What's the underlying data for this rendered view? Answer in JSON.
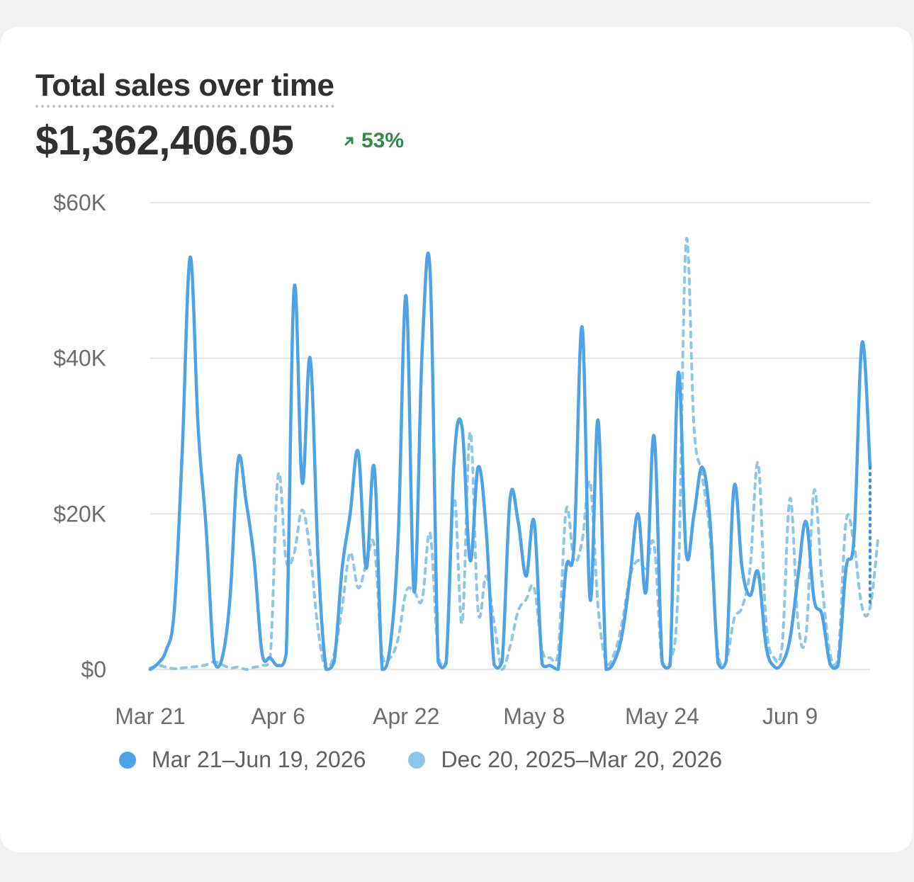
{
  "card": {
    "title": "Total sales over time",
    "total": "$1,362,406.05",
    "change_pct": "53%",
    "change_direction": "up",
    "change_color": "#2f8a4c"
  },
  "chart_data": {
    "type": "line",
    "title": "Total sales over time",
    "xlabel": "",
    "ylabel": "",
    "ylim": [
      0,
      60000
    ],
    "yticks": [
      0,
      20000,
      40000,
      60000
    ],
    "ytick_labels": [
      "$0",
      "$20K",
      "$40K",
      "$60K"
    ],
    "x_tick_labels": [
      "Mar 21",
      "Apr 6",
      "Apr 22",
      "May 8",
      "May 24",
      "Jun 9"
    ],
    "x_tick_indices": [
      0,
      16,
      32,
      48,
      64,
      80
    ],
    "grid": true,
    "legend_position": "bottom",
    "series": [
      {
        "name": "Mar 21–Jun 19, 2026",
        "color": "#4da3e5",
        "style": "solid",
        "values": [
          0,
          800,
          2500,
          7500,
          28000,
          53000,
          31000,
          18000,
          1000,
          1500,
          9500,
          27000,
          21500,
          14000,
          2000,
          1500,
          500,
          2000,
          49000,
          24000,
          40000,
          14000,
          0,
          1000,
          13000,
          20000,
          28000,
          13000,
          26000,
          0,
          3000,
          17000,
          48000,
          10000,
          41000,
          51000,
          1000,
          800,
          27000,
          31000,
          14000,
          26000,
          18000,
          600,
          1000,
          22000,
          19000,
          12000,
          19000,
          700,
          500,
          0,
          13000,
          16000,
          44000,
          9000,
          32000,
          0,
          1000,
          4500,
          12000,
          20000,
          10000,
          30000,
          1000,
          500,
          38000,
          15000,
          20000,
          26000,
          19000,
          800,
          1000,
          23500,
          13000,
          9500,
          12500,
          3000,
          400,
          800,
          4000,
          12000,
          19000,
          9000,
          7000,
          700,
          500,
          13000,
          17000,
          42000,
          26000
        ],
        "dotted_tail_values": [
          26000,
          14000,
          8000
        ]
      },
      {
        "name": "Dec 20, 2025–Mar 20, 2026",
        "color": "#8ec6e8",
        "style": "dashed",
        "values": [
          200,
          500,
          300,
          100,
          200,
          300,
          400,
          600,
          1000,
          600,
          200,
          300,
          0,
          300,
          500,
          1500,
          25000,
          14000,
          15000,
          20500,
          15000,
          5000,
          0,
          2000,
          8000,
          15000,
          10500,
          13500,
          16000,
          2000,
          1500,
          4000,
          10000,
          10000,
          9000,
          17500,
          2000,
          1000,
          22000,
          6000,
          30500,
          7500,
          12000,
          6000,
          0,
          3000,
          7500,
          9000,
          10500,
          2500,
          1500,
          2000,
          20500,
          14000,
          16500,
          24000,
          8000,
          1000,
          2000,
          6000,
          12000,
          14000,
          13000,
          16000,
          700,
          1000,
          10500,
          55000,
          31000,
          25000,
          17000,
          2000,
          1000,
          6500,
          8000,
          13000,
          26500,
          6000,
          1500,
          3000,
          22000,
          6000,
          4500,
          23000,
          11000,
          2000,
          1500,
          19000,
          16000,
          8000,
          8000,
          17000
        ]
      }
    ]
  }
}
